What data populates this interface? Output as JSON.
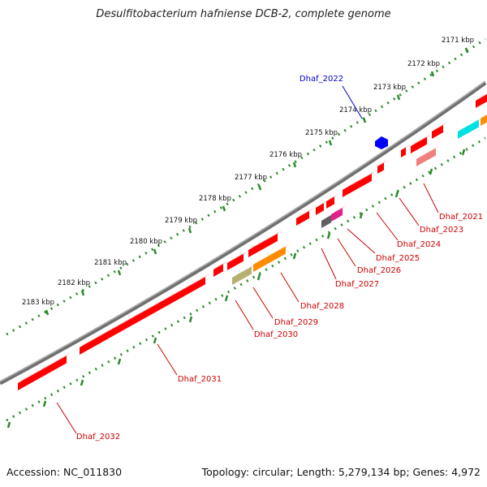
{
  "title": "Desulfitobacterium hafniense DCB-2, complete genome",
  "footer": {
    "accession": "Accession: NC_011830",
    "summary": "Topology: circular; Length: 5,279,134 bp; Genes: 4,972"
  },
  "colors": {
    "forward_gene": "#ff0000",
    "selected_gene": "#0000ff",
    "ruler_tick": "#2a8a2a",
    "backbone": "#808080",
    "label_text": "#cc0000",
    "selected_label": "#0000cc"
  },
  "kbp_ticks": [
    {
      "label": "2171 kbp"
    },
    {
      "label": "2172 kbp"
    },
    {
      "label": "2173 kbp"
    },
    {
      "label": "2174 kbp"
    },
    {
      "label": "2175 kbp"
    },
    {
      "label": "2176 kbp"
    },
    {
      "label": "2177 kbp"
    },
    {
      "label": "2178 kbp"
    },
    {
      "label": "2179 kbp"
    },
    {
      "label": "2180 kbp"
    },
    {
      "label": "2181 kbp"
    },
    {
      "label": "2182 kbp"
    },
    {
      "label": "2183 kbp"
    }
  ],
  "gene_labels": [
    {
      "name": "Dhaf_2022",
      "selected": true
    },
    {
      "name": "Dhaf_2021"
    },
    {
      "name": "Dhaf_2023"
    },
    {
      "name": "Dhaf_2024"
    },
    {
      "name": "Dhaf_2025"
    },
    {
      "name": "Dhaf_2026"
    },
    {
      "name": "Dhaf_2027"
    },
    {
      "name": "Dhaf_2028"
    },
    {
      "name": "Dhaf_2029"
    },
    {
      "name": "Dhaf_2030"
    },
    {
      "name": "Dhaf_2031"
    },
    {
      "name": "Dhaf_2032"
    }
  ]
}
